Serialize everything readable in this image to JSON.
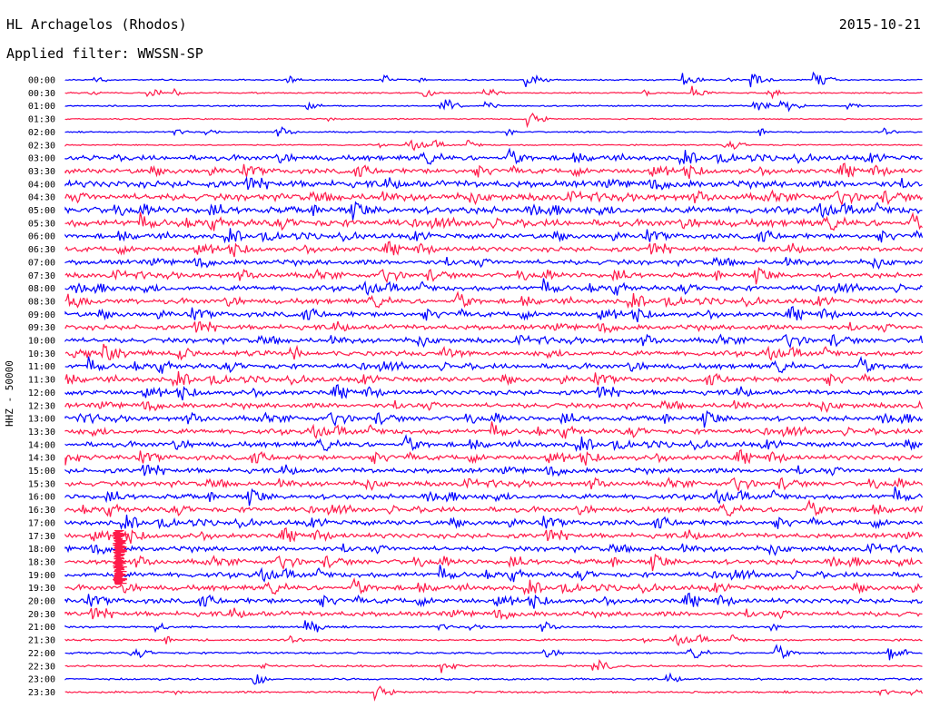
{
  "header": {
    "station": "HL Archagelos (Rhodos)",
    "filter": "Applied filter: WWSSN-SP",
    "date": "2015-10-21"
  },
  "axis": {
    "channel_label": "HHZ - 50000"
  },
  "colors": {
    "trace_a": "#0000ff",
    "trace_b": "#ff1a4a",
    "background": "#ffffff"
  },
  "rows": [
    "00:00",
    "00:30",
    "01:00",
    "01:30",
    "02:00",
    "02:30",
    "03:00",
    "03:30",
    "04:00",
    "04:30",
    "05:00",
    "05:30",
    "06:00",
    "06:30",
    "07:00",
    "07:30",
    "08:00",
    "08:30",
    "09:00",
    "09:30",
    "10:00",
    "10:30",
    "11:00",
    "11:30",
    "12:00",
    "12:30",
    "13:00",
    "13:30",
    "14:00",
    "14:30",
    "15:00",
    "15:30",
    "16:00",
    "16:30",
    "17:00",
    "17:30",
    "18:00",
    "18:30",
    "19:00",
    "19:30",
    "20:00",
    "20:30",
    "21:00",
    "21:30",
    "22:00",
    "22:30",
    "23:00",
    "23:30"
  ]
}
